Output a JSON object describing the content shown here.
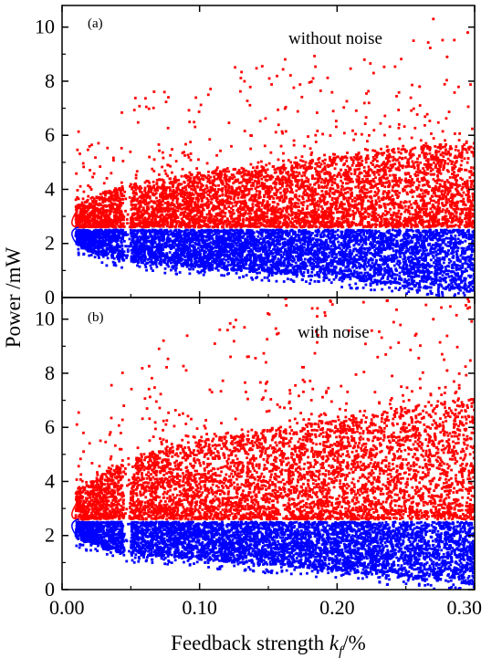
{
  "figure": {
    "xlabel_text": "Feedback strength ",
    "xlabel_var": "k",
    "xlabel_sub": "f",
    "xlabel_unit": "/%",
    "ylabel": "Power /mW",
    "colors": {
      "upper_branch": "#ff0000",
      "lower_branch": "#0000ff",
      "axes": "#000000"
    }
  },
  "chart_data": [
    {
      "type": "scatter",
      "panel_label": "(a)",
      "annotation": "without noise",
      "xlim": [
        0.0,
        0.3
      ],
      "ylim": [
        0,
        10.8
      ],
      "xticks": [
        0.0,
        0.1,
        0.2,
        0.3
      ],
      "xtick_labels": [
        "0.00",
        "0.10",
        "0.20",
        "0.30"
      ],
      "yticks": [
        0,
        2,
        4,
        6,
        8,
        10
      ],
      "ytick_labels": [
        "0",
        "2",
        "4",
        "6",
        "8",
        "10"
      ],
      "show_xtick_labels": false,
      "bifurcation_point": {
        "x": 0.005,
        "y": 2.6
      },
      "gap_window": {
        "x_start": 0.045,
        "x_end": 0.05
      },
      "series": [
        {
          "color": "#ff0000",
          "branch": "upper",
          "envelope_x": [
            0.01,
            0.03,
            0.05,
            0.1,
            0.15,
            0.2,
            0.25,
            0.3
          ],
          "envelope_low": [
            2.6,
            2.6,
            2.6,
            2.6,
            2.6,
            2.6,
            2.6,
            2.6
          ],
          "envelope_high": [
            3.4,
            3.9,
            4.2,
            4.6,
            4.9,
            5.2,
            5.5,
            5.8
          ],
          "max_outliers": [
            [
              0.27,
              10.3
            ],
            [
              0.28,
              8.9
            ],
            [
              0.295,
              9.8
            ],
            [
              0.26,
              7.8
            ]
          ]
        },
        {
          "color": "#0000ff",
          "branch": "lower",
          "envelope_x": [
            0.01,
            0.03,
            0.05,
            0.1,
            0.15,
            0.2,
            0.25,
            0.3
          ],
          "envelope_low": [
            1.9,
            1.5,
            1.3,
            1.1,
            0.9,
            0.7,
            0.4,
            0.2
          ],
          "envelope_high": [
            2.5,
            2.5,
            2.5,
            2.5,
            2.5,
            2.5,
            2.5,
            2.5
          ]
        }
      ]
    },
    {
      "type": "scatter",
      "panel_label": "(b)",
      "annotation": "with noise",
      "xlim": [
        0.0,
        0.3
      ],
      "ylim": [
        0,
        10.8
      ],
      "xticks": [
        0.0,
        0.1,
        0.2,
        0.3
      ],
      "xtick_labels": [
        "0.00",
        "0.10",
        "0.20",
        "0.30"
      ],
      "yticks": [
        0,
        2,
        4,
        6,
        8,
        10
      ],
      "ytick_labels": [
        "0",
        "2",
        "4",
        "6",
        "8",
        "10"
      ],
      "show_xtick_labels": true,
      "bifurcation_point": {
        "x": 0.005,
        "y": 2.6
      },
      "gap_window": {
        "x_start": 0.045,
        "x_end": 0.05
      },
      "series": [
        {
          "color": "#ff0000",
          "branch": "upper",
          "envelope_x": [
            0.01,
            0.03,
            0.05,
            0.1,
            0.15,
            0.2,
            0.25,
            0.3
          ],
          "envelope_low": [
            2.6,
            2.6,
            2.6,
            2.6,
            2.6,
            2.6,
            2.6,
            2.6
          ],
          "envelope_high": [
            3.6,
            4.3,
            4.9,
            5.5,
            5.9,
            6.3,
            6.7,
            7.1
          ],
          "max_outliers": [
            [
              0.27,
              10.0
            ],
            [
              0.295,
              10.4
            ],
            [
              0.28,
              8.1
            ],
            [
              0.24,
              7.9
            ]
          ]
        },
        {
          "color": "#0000ff",
          "branch": "lower",
          "envelope_x": [
            0.01,
            0.03,
            0.05,
            0.1,
            0.15,
            0.2,
            0.25,
            0.3
          ],
          "envelope_low": [
            1.9,
            1.5,
            1.3,
            1.1,
            0.9,
            0.7,
            0.4,
            0.2
          ],
          "envelope_high": [
            2.5,
            2.5,
            2.5,
            2.5,
            2.5,
            2.5,
            2.5,
            2.5
          ]
        }
      ]
    }
  ]
}
